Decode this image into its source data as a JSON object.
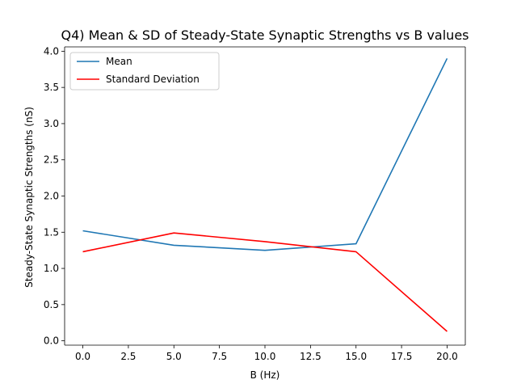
{
  "chart_data": {
    "type": "line",
    "title": "Q4) Mean & SD of Steady-State Synaptic Strengths vs B values",
    "xlabel": "B (Hz)",
    "ylabel": "Steady-State Synaptic Strengths (nS)",
    "x": [
      0,
      5,
      10,
      15,
      20
    ],
    "xlim": [
      -1,
      21
    ],
    "ylim": [
      -0.06,
      4.06
    ],
    "xticks": [
      "0.0",
      "2.5",
      "5.0",
      "7.5",
      "10.0",
      "12.5",
      "15.0",
      "17.5",
      "20.0"
    ],
    "yticks": [
      "0.0",
      "0.5",
      "1.0",
      "1.5",
      "2.0",
      "2.5",
      "3.0",
      "3.5",
      "4.0"
    ],
    "grid": false,
    "legend_position": "upper-left",
    "series": [
      {
        "name": "Mean",
        "color": "#1f77b4",
        "values": [
          1.52,
          1.32,
          1.25,
          1.34,
          3.9
        ]
      },
      {
        "name": "Standard Deviation",
        "color": "#ff0000",
        "values": [
          1.23,
          1.49,
          1.37,
          1.23,
          0.13
        ]
      }
    ]
  }
}
